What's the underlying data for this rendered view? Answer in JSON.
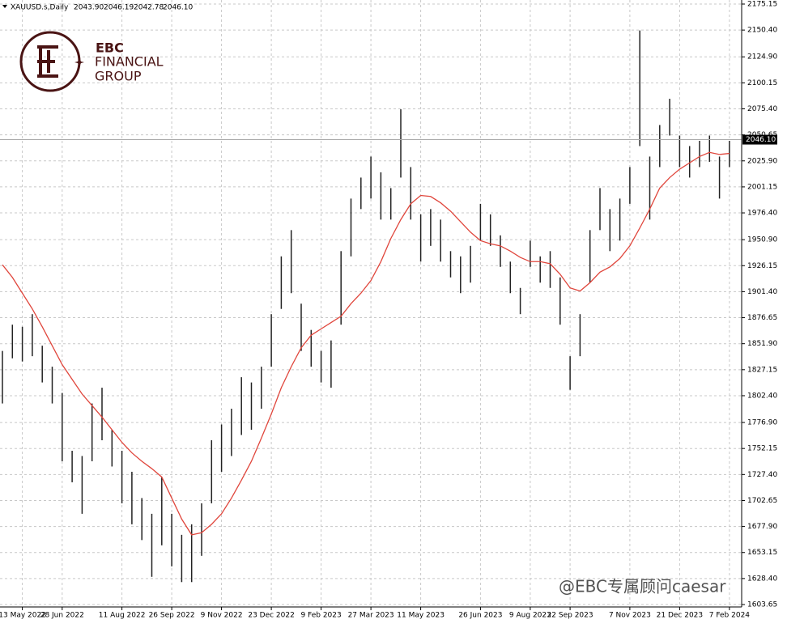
{
  "chart_data": {
    "type": "ohlc",
    "symbol": "XAUUSD.s,Daily",
    "header_values": [
      "2043.90",
      "2046.19",
      "2042.78",
      "2046.10"
    ],
    "categories": [
      null,
      null,
      "13 May 2022",
      null,
      null,
      null,
      "28 Jun 2022",
      null,
      null,
      null,
      null,
      null,
      "11 Aug 2022",
      null,
      null,
      null,
      null,
      "26 Sep 2022",
      null,
      null,
      null,
      null,
      "9 Nov 2022",
      null,
      null,
      null,
      null,
      "23 Dec 2022",
      null,
      null,
      null,
      null,
      "9 Feb 2023",
      null,
      null,
      null,
      null,
      "27 Mar 2023",
      null,
      null,
      null,
      null,
      "11 May 2023",
      null,
      null,
      null,
      null,
      null,
      "26 Jun 2023",
      null,
      null,
      null,
      null,
      "9 Aug 2023",
      null,
      null,
      null,
      "22 Sep 2023",
      null,
      null,
      null,
      null,
      null,
      "7 Nov 2023",
      null,
      null,
      null,
      null,
      "21 Dec 2023",
      null,
      null,
      null,
      null,
      "7 Feb 2024"
    ],
    "high": [
      1845,
      1870,
      1868,
      1880,
      1850,
      1830,
      1805,
      1750,
      1745,
      1795,
      1810,
      1770,
      1750,
      1730,
      1705,
      1690,
      1725,
      1690,
      1670,
      1680,
      1700,
      1760,
      1775,
      1790,
      1820,
      1815,
      1830,
      1880,
      1935,
      1960,
      1890,
      1865,
      1845,
      1855,
      1940,
      1990,
      2010,
      2030,
      2015,
      2000,
      2075,
      2020,
      1975,
      1980,
      1970,
      1940,
      1935,
      1945,
      1985,
      1975,
      1955,
      1930,
      1905,
      1950,
      1935,
      1940,
      1915,
      1840,
      1880,
      1960,
      2000,
      1980,
      1990,
      2020,
      2150,
      2030,
      2060,
      2085,
      2050,
      2040,
      2045,
      2050,
      2030,
      2045
    ],
    "low": [
      1795,
      1838,
      1835,
      1840,
      1815,
      1795,
      1740,
      1720,
      1690,
      1740,
      1760,
      1735,
      1700,
      1680,
      1665,
      1630,
      1660,
      1640,
      1625,
      1625,
      1650,
      1700,
      1730,
      1745,
      1765,
      1770,
      1790,
      1830,
      1885,
      1900,
      1845,
      1830,
      1815,
      1810,
      1870,
      1935,
      1980,
      1990,
      1970,
      1970,
      2010,
      1970,
      1930,
      1945,
      1930,
      1915,
      1900,
      1910,
      1950,
      1945,
      1925,
      1900,
      1880,
      1925,
      1910,
      1905,
      1870,
      1808,
      1840,
      1910,
      1960,
      1940,
      1950,
      1985,
      2040,
      1970,
      2020,
      2050,
      2020,
      2010,
      2020,
      2025,
      1990,
      2020
    ],
    "bar_color": "#222222",
    "ma": [
      1927,
      1915,
      1900,
      1885,
      1868,
      1850,
      1832,
      1818,
      1804,
      1793,
      1782,
      1770,
      1758,
      1748,
      1740,
      1733,
      1725,
      1705,
      1685,
      1670,
      1672,
      1680,
      1690,
      1705,
      1722,
      1740,
      1762,
      1785,
      1810,
      1830,
      1848,
      1860,
      1866,
      1872,
      1878,
      1890,
      1900,
      1912,
      1930,
      1952,
      1970,
      1985,
      1993,
      1992,
      1986,
      1978,
      1968,
      1958,
      1950,
      1947,
      1945,
      1940,
      1934,
      1930,
      1930,
      1928,
      1918,
      1905,
      1902,
      1910,
      1920,
      1925,
      1933,
      1945,
      1962,
      1980,
      2000,
      2010,
      2018,
      2024,
      2030,
      2034,
      2032,
      2033
    ],
    "ma_color": "#e0463c",
    "current_price": {
      "value": 2046.1,
      "label": "2046.10"
    },
    "ylim": [
      1603.65,
      2175.15
    ],
    "yticks": [
      {
        "value": 1603.65,
        "label": "1603.65"
      },
      {
        "value": 1628.4,
        "label": "1628.40"
      },
      {
        "value": 1653.15,
        "label": "1653.15"
      },
      {
        "value": 1677.9,
        "label": "1677.90"
      },
      {
        "value": 1702.65,
        "label": "1702.65"
      },
      {
        "value": 1727.4,
        "label": "1727.40"
      },
      {
        "value": 1752.15,
        "label": "1752.15"
      },
      {
        "value": 1776.9,
        "label": "1776.90"
      },
      {
        "value": 1802.4,
        "label": "1802.40"
      },
      {
        "value": 1827.15,
        "label": "1827.15"
      },
      {
        "value": 1851.9,
        "label": "1851.90"
      },
      {
        "value": 1876.65,
        "label": "1876.65"
      },
      {
        "value": 1901.4,
        "label": "1901.40"
      },
      {
        "value": 1926.15,
        "label": "1926.15"
      },
      {
        "value": 1950.9,
        "label": "1950.90"
      },
      {
        "value": 1976.4,
        "label": "1976.40"
      },
      {
        "value": 2001.15,
        "label": "2001.15"
      },
      {
        "value": 2025.9,
        "label": "2025.90"
      },
      {
        "value": 2050.65,
        "label": "2050.65"
      },
      {
        "value": 2075.4,
        "label": "2075.40"
      },
      {
        "value": 2100.15,
        "label": "2100.15"
      },
      {
        "value": 2124.9,
        "label": "2124.90"
      },
      {
        "value": 2150.4,
        "label": "2150.40"
      },
      {
        "value": 2175.15,
        "label": "2175.15"
      }
    ],
    "grid": true
  },
  "logo": {
    "line1": "EBC",
    "line2": "FINANCIAL",
    "line3": "GROUP"
  },
  "watermark": "@EBC专属顾问caesar"
}
